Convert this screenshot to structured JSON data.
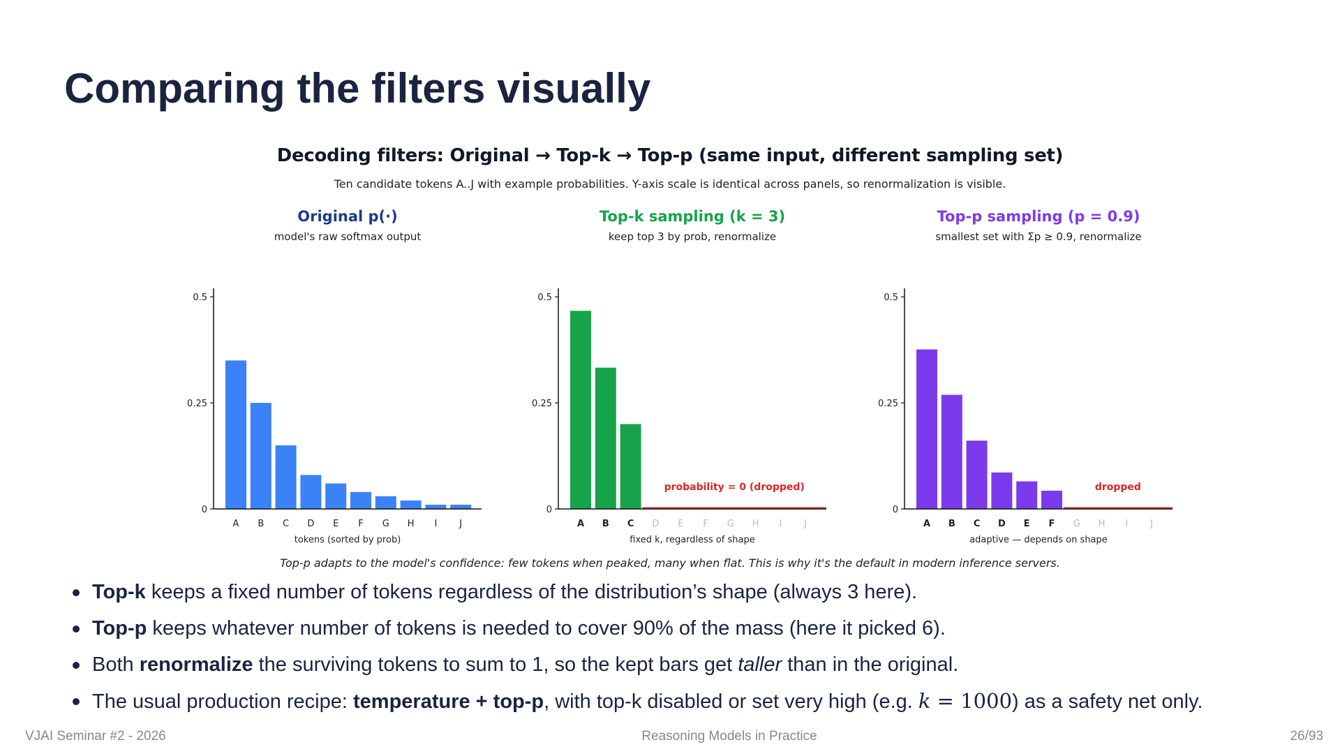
{
  "slide": {
    "title": "Comparing the filters visually",
    "footer_left": "VJAI Seminar #2 - 2026",
    "footer_center": "Reasoning Models in Practice",
    "footer_right": "26/93"
  },
  "figure": {
    "title": "Decoding filters: Original → Top-k → Top-p (same input, different sampling set)",
    "subtitle": "Ten candidate tokens A..J with example probabilities. Y-axis scale is identical across panels, so renormalization is visible.",
    "caption": "Top-p adapts to the model's confidence: few tokens when peaked, many when flat. This is why it's the default in modern inference servers."
  },
  "colors": {
    "original": "#3b82f6",
    "original_title": "#1e3a8a",
    "topk": "#16a34a",
    "topp": "#7c3aed",
    "dropped": "#dc2626",
    "text_dark": "#1a2440"
  },
  "chart_data": [
    {
      "type": "bar",
      "title": "Original p(·)",
      "subtitle": "model's raw softmax output",
      "xlabel": "tokens (sorted by prob)",
      "ylabel": "",
      "ylim": [
        0,
        0.52
      ],
      "yticks": [
        0,
        0.25,
        0.5
      ],
      "ytick_labels": [
        "0",
        "0.25",
        "0.5"
      ],
      "categories": [
        "A",
        "B",
        "C",
        "D",
        "E",
        "F",
        "G",
        "H",
        "I",
        "J"
      ],
      "values": [
        0.35,
        0.25,
        0.15,
        0.08,
        0.06,
        0.04,
        0.03,
        0.02,
        0.01,
        0.01
      ],
      "kept": [
        true,
        true,
        true,
        true,
        true,
        true,
        true,
        true,
        true,
        true
      ],
      "annotation": ""
    },
    {
      "type": "bar",
      "title": "Top-k sampling (k = 3)",
      "subtitle": "keep top 3 by prob, renormalize",
      "xlabel": "fixed k, regardless of shape",
      "ylabel": "",
      "ylim": [
        0,
        0.52
      ],
      "yticks": [
        0,
        0.25,
        0.5
      ],
      "ytick_labels": [
        "0",
        "0.25",
        "0.5"
      ],
      "categories": [
        "A",
        "B",
        "C",
        "D",
        "E",
        "F",
        "G",
        "H",
        "I",
        "J"
      ],
      "values": [
        0.467,
        0.333,
        0.2,
        0,
        0,
        0,
        0,
        0,
        0,
        0
      ],
      "kept": [
        true,
        true,
        true,
        false,
        false,
        false,
        false,
        false,
        false,
        false
      ],
      "annotation": "probability = 0 (dropped)"
    },
    {
      "type": "bar",
      "title": "Top-p sampling (p = 0.9)",
      "subtitle": "smallest set with Σp ≥ 0.9, renormalize",
      "xlabel": "adaptive — depends on shape",
      "ylabel": "",
      "ylim": [
        0,
        0.52
      ],
      "yticks": [
        0,
        0.25,
        0.5
      ],
      "ytick_labels": [
        "0",
        "0.25",
        "0.5"
      ],
      "categories": [
        "A",
        "B",
        "C",
        "D",
        "E",
        "F",
        "G",
        "H",
        "I",
        "J"
      ],
      "values": [
        0.376,
        0.269,
        0.161,
        0.086,
        0.065,
        0.043,
        0,
        0,
        0,
        0
      ],
      "kept": [
        true,
        true,
        true,
        true,
        true,
        true,
        false,
        false,
        false,
        false
      ],
      "annotation": "dropped"
    }
  ],
  "bullets": [
    {
      "bold": "Top-k",
      "text": " keeps a fixed number of tokens regardless of the distribution’s shape (always 3 here)."
    },
    {
      "bold": "Top-p",
      "text": " keeps whatever number of tokens is needed to cover 90% of the mass (here it picked 6)."
    },
    {
      "pre": "Both ",
      "bold": "renormalize",
      "mid": " the surviving tokens to sum to 1, so the kept bars get ",
      "em": "taller",
      "post": " than in the original."
    },
    {
      "pre": "The usual production recipe: ",
      "bold": "temperature + top-p",
      "mid": ", with top-k disabled or set very high (e.g. ",
      "math_var": "k",
      "math_eq": " = ",
      "math_num": "1000",
      "post": ") as a safety net only."
    }
  ]
}
